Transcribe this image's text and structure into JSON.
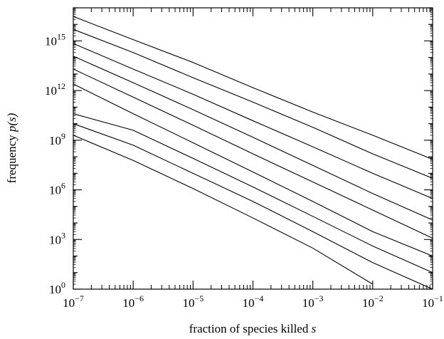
{
  "chart_data": {
    "type": "line",
    "xscale": "log",
    "yscale": "log",
    "xlim": [
      1e-07,
      0.1
    ],
    "ylim": [
      1,
      1e+17
    ],
    "xlabel": "fraction of species killed",
    "xlabel_var": "s",
    "ylabel": "frequency",
    "ylabel_var": "p(s)",
    "xticks": [
      {
        "base": "10",
        "exp": "−7",
        "value": 1e-07
      },
      {
        "base": "10",
        "exp": "−6",
        "value": 1e-06
      },
      {
        "base": "10",
        "exp": "−5",
        "value": 1e-05
      },
      {
        "base": "10",
        "exp": "−4",
        "value": 0.0001
      },
      {
        "base": "10",
        "exp": "−3",
        "value": 0.001
      },
      {
        "base": "10",
        "exp": "−2",
        "value": 0.01
      },
      {
        "base": "10",
        "exp": "−1",
        "value": 0.1
      }
    ],
    "yticks": [
      {
        "base": "10",
        "exp": "0",
        "value": 1
      },
      {
        "base": "10",
        "exp": "3",
        "value": 1000.0
      },
      {
        "base": "10",
        "exp": "6",
        "value": 1000000.0
      },
      {
        "base": "10",
        "exp": "9",
        "value": 1000000000.0
      },
      {
        "base": "10",
        "exp": "12",
        "value": 1000000000000.0
      },
      {
        "base": "10",
        "exp": "15",
        "value": 1000000000000000.0
      }
    ],
    "grid": false,
    "series": [
      {
        "x": [
          1e-07,
          1e-06,
          1e-05,
          0.0001,
          0.001,
          0.01,
          0.1
        ],
        "y": [
          3e+16,
          1200000000000000.0,
          50000000000000.0,
          1500000000000.0,
          50000000000.0,
          2000000000.0,
          70000000.0
        ]
      },
      {
        "x": [
          1e-07,
          1e-06,
          1e-05,
          0.0001,
          0.001,
          0.01,
          0.1
        ],
        "y": [
          5000000000000000.0,
          200000000000000.0,
          6000000000000.0,
          200000000000.0,
          6000000000.0,
          150000000.0,
          5000000.0
        ]
      },
      {
        "x": [
          1e-07,
          1e-06,
          1e-05,
          0.0001,
          0.001,
          0.01,
          0.1
        ],
        "y": [
          700000000000000.0,
          20000000000000.0,
          600000000000.0,
          15000000000.0,
          400000000.0,
          10000000.0,
          300000.0
        ]
      },
      {
        "x": [
          1e-07,
          1e-06,
          1e-05,
          0.0001,
          0.001,
          0.01,
          0.1
        ],
        "y": [
          120000000000000.0,
          3000000000000.0,
          70000000000.0,
          1500000000.0,
          30000000.0,
          600000.0,
          15000.0
        ]
      },
      {
        "x": [
          1e-07,
          1e-06,
          1e-05,
          0.0001,
          0.001,
          0.01,
          0.1
        ],
        "y": [
          20000000000000.0,
          400000000000.0,
          8000000000.0,
          150000000.0,
          3000000.0,
          60000.0,
          1200.0
        ]
      },
      {
        "x": [
          1e-07,
          1e-06,
          1e-05,
          0.0001,
          0.001,
          0.01,
          0.1
        ],
        "y": [
          2500000000000.0,
          40000000000.0,
          700000000.0,
          12000000.0,
          200000.0,
          3000.0,
          100
        ]
      },
      {
        "x": [
          1e-07,
          1e-06,
          1e-05,
          0.0001,
          0.001,
          0.01,
          0.1
        ],
        "y": [
          40000000000.0,
          4000000000.0,
          80000000.0,
          1500000.0,
          25000.0,
          400,
          10
        ]
      },
      {
        "x": [
          1e-07,
          1e-06,
          1e-05,
          0.0001,
          0.001,
          0.01,
          0.1
        ],
        "y": [
          10000000000.0,
          500000000.0,
          10000000.0,
          200000.0,
          3000.0,
          40,
          1
        ]
      },
      {
        "x": [
          1e-07,
          1e-06,
          1e-05,
          0.0001,
          0.001,
          0.01
        ],
        "y": [
          2000000000.0,
          60000000.0,
          1200000.0,
          20000.0,
          300,
          2
        ]
      }
    ]
  }
}
